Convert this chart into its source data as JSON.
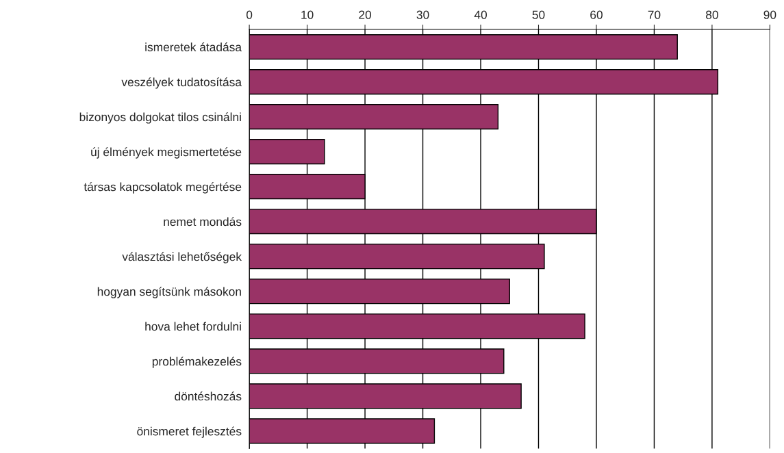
{
  "chart_data": {
    "type": "bar",
    "orientation": "horizontal",
    "categories": [
      "ismeretek átadása",
      "veszélyek tudatosítása",
      "bizonyos dolgokat tilos csinálni",
      "új élmények megismertetése",
      "társas kapcsolatok megértése",
      "nemet mondás",
      "választási lehetőségek",
      "hogyan segítsünk másokon",
      "hova lehet fordulni",
      "problémakezelés",
      "döntéshozás",
      "önismeret fejlesztés"
    ],
    "values": [
      74,
      81,
      43,
      13,
      20,
      60,
      51,
      45,
      58,
      44,
      47,
      32
    ],
    "color": "#993366",
    "xlim": [
      0,
      90
    ],
    "xticks": [
      0,
      10,
      20,
      30,
      40,
      50,
      60,
      70,
      80,
      90
    ],
    "grid": "x",
    "legend": false
  }
}
